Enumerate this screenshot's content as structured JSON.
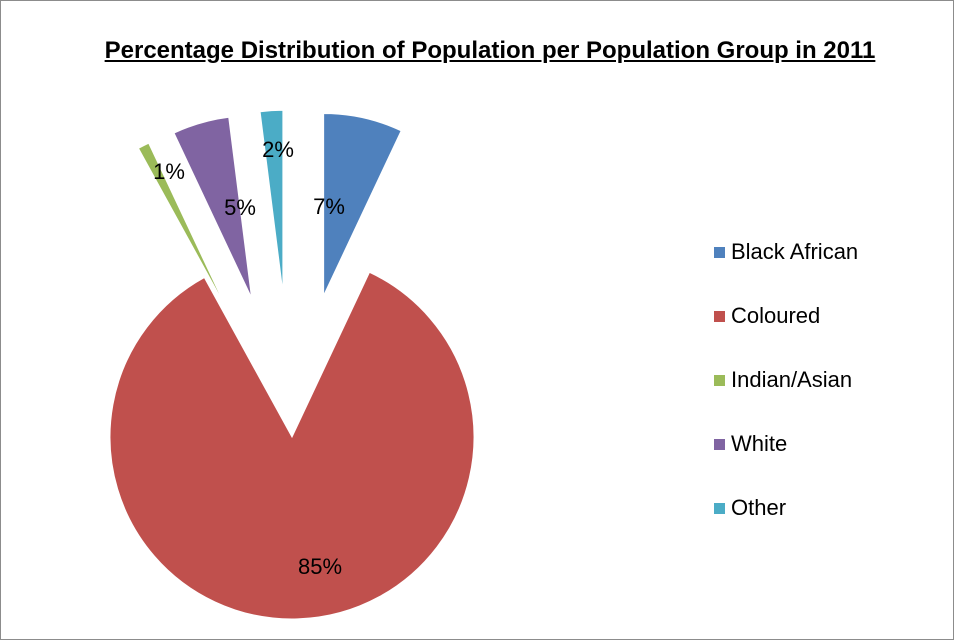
{
  "chart_data": {
    "type": "pie",
    "title": "Percentage Distribution of Population per Population Group in 2011",
    "categories": [
      "Black African",
      "Coloured",
      "Indian/Asian",
      "White",
      "Other"
    ],
    "values": [
      7,
      85,
      1,
      5,
      2
    ],
    "labels": [
      "7%",
      "85%",
      "1%",
      "5%",
      "2%"
    ],
    "colors": [
      "#4f81bd",
      "#c0504d",
      "#9bbb59",
      "#8064a2",
      "#4bacc6"
    ],
    "exploded": true,
    "legend": "right"
  }
}
